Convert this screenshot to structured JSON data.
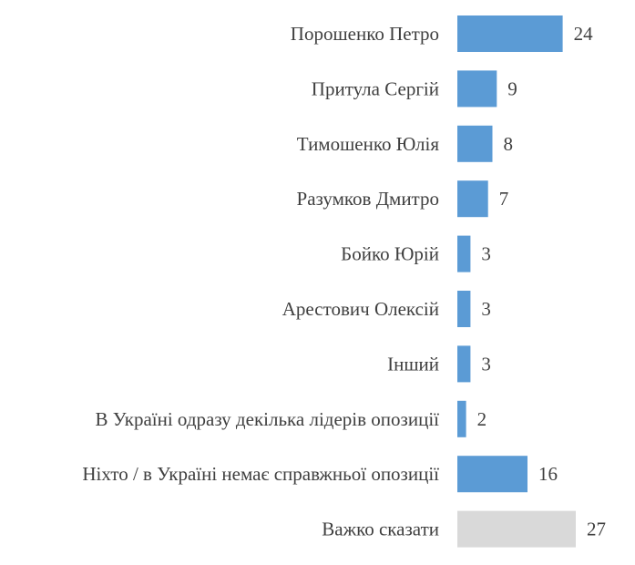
{
  "chart_data": {
    "type": "bar",
    "orientation": "horizontal",
    "categories": [
      "Порошенко Петро",
      "Притула Сергій",
      "Тимошенко Юлія",
      "Разумков Дмитро",
      "Бойко Юрій",
      "Арестович Олексій",
      "Інший",
      "В Україні одразу декілька лідерів опозиції",
      "Ніхто / в Україні немає справжньої опозиції",
      "Важко сказати"
    ],
    "values": [
      24,
      9,
      8,
      7,
      3,
      3,
      3,
      2,
      16,
      27
    ],
    "value_labels": [
      "24",
      "9",
      "8",
      "7",
      "3",
      "3",
      "3",
      "2",
      "16",
      "27"
    ],
    "colors": {
      "primary": "#5b9bd5",
      "last": "#d9d9d9",
      "label_text": "#3f3f3f",
      "last_value_text": "#595959"
    },
    "title": "",
    "xlabel": "",
    "ylabel": "",
    "xlim": [
      0,
      27
    ],
    "grid": false,
    "legend": "none"
  }
}
